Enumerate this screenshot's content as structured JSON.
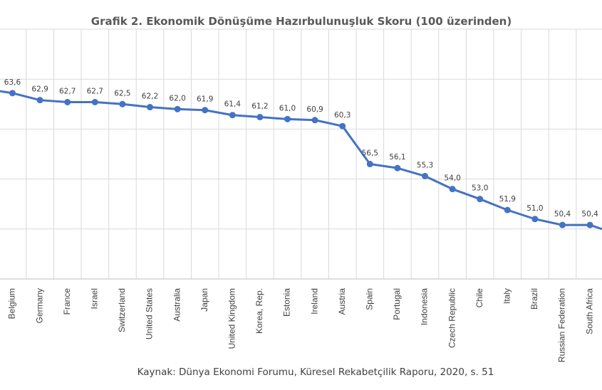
{
  "chart_data": {
    "type": "line",
    "title": "Grafik 2. Ekonomik Dönüşüme Hazırbulunuşluk Skoru (100 üzerinden)",
    "source": "Kaynak: Dünya Ekonomi Forumu,  Küresel Rekabetçilik Raporu, 2020, s. 51",
    "categories": [
      "Belgium",
      "Germany",
      "France",
      "Israel",
      "Switzerland",
      "United States",
      "Australia",
      "Japan",
      "United Kingdom",
      "Korea, Rep.",
      "Estonia",
      "Ireland",
      "Austria",
      "Spain",
      "Portugal",
      "Indonesia",
      "Czech Republic",
      "Chile",
      "Italy",
      "Brazil",
      "Russian Federation",
      "South Africa"
    ],
    "values": [
      63.6,
      62.9,
      62.7,
      62.7,
      62.5,
      62.2,
      62.0,
      61.9,
      61.4,
      61.2,
      61.0,
      60.9,
      60.3,
      56.5,
      56.1,
      55.3,
      54.0,
      53.0,
      51.9,
      51.0,
      50.4,
      50.4
    ],
    "value_labels": [
      "63,6",
      "62,9",
      "62,7",
      "62,7",
      "62,5",
      "62,2",
      "62,0",
      "61,9",
      "61,4",
      "61,2",
      "61,0",
      "60,9",
      "60,3",
      "56,5",
      "56,1",
      "55,3",
      "54,0",
      "53,0",
      "51,9",
      "51,0",
      "50,4",
      "50,4"
    ],
    "leading_value": 63.8,
    "trailing_value": 50.0,
    "ylim": [
      45,
      70
    ],
    "grid": true,
    "line_color": "#4472c4",
    "grid_color": "#d9d9d9"
  }
}
